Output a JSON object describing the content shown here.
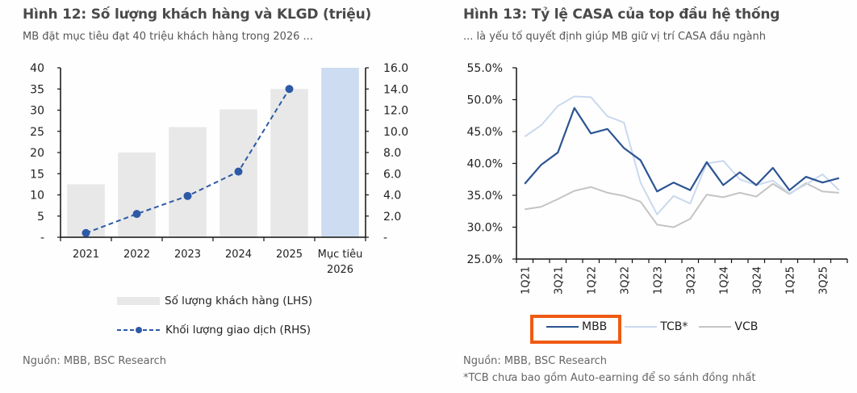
{
  "left_panel": {
    "title": "Hình 12: Số lượng khách hàng và KLGD (triệu)",
    "subtitle": "MB đặt mục tiêu đạt 40 triệu khách hàng trong 2026 ...",
    "source": "Nguồn: MBB, BSC Research",
    "legend": {
      "bar_label": "Số lượng khách hàng (LHS)",
      "line_label": "Khối lượng giao dịch (RHS)"
    }
  },
  "right_panel": {
    "title": "Hình 13: Tỷ lệ CASA của top đầu hệ thống",
    "subtitle": "... là yếu tố quyết định giúp MB giữ vị trí CASA đầu ngành",
    "source": "Nguồn: MBB, BSC Research",
    "footnote": "*TCB chưa bao gồm Auto-earning để so sánh đồng nhất",
    "legend": [
      "MBB",
      "TCB*",
      "VCB"
    ],
    "highlighted_legend": "MBB"
  },
  "colors": {
    "bar": "#e8e8e8",
    "bar_target": "#cddcf0",
    "line_rhs": "#2c5aa6",
    "mbb": "#2c5493",
    "tcb": "#c9d9ee",
    "vcb": "#c4c4c4",
    "highlight": "#f05a14"
  },
  "chart_data": [
    {
      "type": "bar",
      "title": "Hình 12: Số lượng khách hàng và KLGD (triệu)",
      "categories": [
        "2021",
        "2022",
        "2023",
        "2024",
        "2025",
        "Mục tiêu 2026"
      ],
      "series": [
        {
          "name": "Số lượng khách hàng (LHS)",
          "type": "bar",
          "axis": "left",
          "values": [
            12.5,
            20.0,
            26.0,
            30.2,
            35.0,
            40.0
          ]
        },
        {
          "name": "Khối lượng giao dịch (RHS)",
          "type": "line",
          "axis": "right",
          "style": "dashed-marker",
          "values": [
            0.4,
            2.2,
            3.9,
            6.2,
            14.0,
            null
          ]
        }
      ],
      "ylim_left": [
        0,
        40
      ],
      "yticks_left": [
        "-",
        "5",
        "10",
        "15",
        "20",
        "25",
        "30",
        "35",
        "40"
      ],
      "ylim_right": [
        0,
        16
      ],
      "yticks_right": [
        "-",
        "2.0",
        "4.0",
        "6.0",
        "8.0",
        "10.0",
        "12.0",
        "14.0",
        "16.0"
      ],
      "grid": false,
      "legend_position": "bottom"
    },
    {
      "type": "line",
      "title": "Hình 13: Tỷ lệ CASA của top đầu hệ thống",
      "x": [
        "1Q21",
        "2Q21",
        "3Q21",
        "4Q21",
        "1Q22",
        "2Q22",
        "3Q22",
        "4Q22",
        "1Q23",
        "2Q23",
        "3Q23",
        "4Q23",
        "1Q24",
        "2Q24",
        "3Q24",
        "4Q24",
        "1Q25",
        "2Q25",
        "3Q25",
        "4Q25"
      ],
      "xtick_labels": [
        "1Q21",
        "3Q21",
        "1Q22",
        "3Q22",
        "1Q23",
        "3Q23",
        "1Q24",
        "3Q24",
        "1Q25",
        "3Q25"
      ],
      "series": [
        {
          "name": "MBB",
          "values": [
            36.8,
            39.8,
            41.7,
            48.7,
            44.7,
            45.4,
            42.4,
            40.5,
            35.6,
            37.0,
            35.8,
            40.2,
            36.6,
            38.6,
            36.6,
            39.3,
            35.8,
            37.9,
            37.0,
            37.7
          ]
        },
        {
          "name": "TCB*",
          "values": [
            44.2,
            46.0,
            49.0,
            50.5,
            50.4,
            47.4,
            46.4,
            37.0,
            32.0,
            34.9,
            33.7,
            40.0,
            40.4,
            37.5,
            36.6,
            37.3,
            35.3,
            36.7,
            38.3,
            35.8
          ]
        },
        {
          "name": "VCB",
          "values": [
            32.8,
            33.2,
            34.4,
            35.7,
            36.3,
            35.4,
            34.9,
            34.0,
            30.4,
            30.0,
            31.3,
            35.1,
            34.7,
            35.4,
            34.8,
            36.8,
            35.2,
            36.9,
            35.6,
            35.4
          ]
        }
      ],
      "ylim": [
        25,
        55
      ],
      "yticks": [
        "25.0%",
        "30.0%",
        "35.0%",
        "40.0%",
        "45.0%",
        "50.0%",
        "55.0%"
      ],
      "ylabel": "",
      "grid": false,
      "legend_position": "bottom"
    }
  ]
}
